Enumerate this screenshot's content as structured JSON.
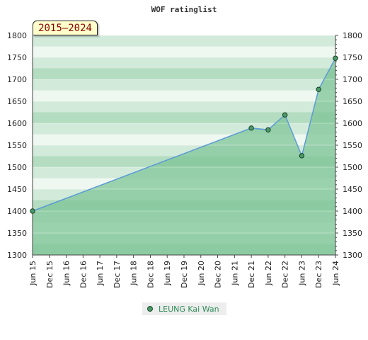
{
  "chart_data": {
    "type": "area",
    "title": "WOF ratinglist",
    "range_label": "2015–2024",
    "ylim": [
      1300,
      1800
    ],
    "y_ticks": [
      "1300",
      "1350",
      "1400",
      "1450",
      "1500",
      "1550",
      "1600",
      "1650",
      "1700",
      "1750",
      "1800"
    ],
    "x_ticks": [
      "Jun 15",
      "Dec 15",
      "Jun 16",
      "Dec 16",
      "Jun 17",
      "Dec 17",
      "Jun 18",
      "Dec 18",
      "Jun 19",
      "Dec 19",
      "Jun 20",
      "Dec 20",
      "Jun 21",
      "Dec 21",
      "Jun 22",
      "Dec 22",
      "Jun 23",
      "Dec 23",
      "Jun 24"
    ],
    "grid": true,
    "y_axis_both_sides": true,
    "legend_position": "bottom-center",
    "series": [
      {
        "name": "LEUNG Kai Wan",
        "color": "#5b9bd5",
        "marker_color": "#4a9b68",
        "points": [
          {
            "x": "Jun 15",
            "y": 1400
          },
          {
            "x": "Dec 21",
            "y": 1589
          },
          {
            "x": "Jun 22",
            "y": 1585
          },
          {
            "x": "Dec 22",
            "y": 1619
          },
          {
            "x": "Jun 23",
            "y": 1526
          },
          {
            "x": "Dec 23",
            "y": 1677
          },
          {
            "x": "Jun 24",
            "y": 1748
          }
        ]
      }
    ],
    "colors": {
      "band_darkest": "#7fc598",
      "band_dark": "#99d1ab",
      "band_mid": "#b3dcc0",
      "band_light": "#d2eada",
      "band_lightest": "#eef7f0",
      "area_fill": "#7fc598"
    }
  }
}
